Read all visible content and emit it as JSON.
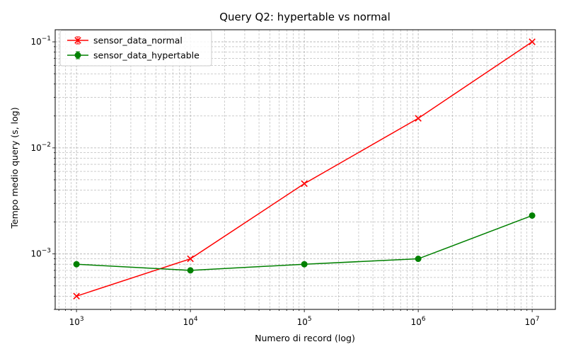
{
  "chart_data": {
    "type": "line",
    "title": "Query Q2: hypertable vs normal",
    "xlabel": "Numero di record (log)",
    "ylabel": "Tempo medio query (s, log)",
    "x_scale": "log",
    "y_scale": "log",
    "x": [
      1000,
      10000,
      100000,
      1000000,
      10000000
    ],
    "xlim": [
      650,
      16000000
    ],
    "ylim": [
      0.0003,
      0.13
    ],
    "x_ticks": [
      {
        "value": 1000,
        "base": "10",
        "exp": "3"
      },
      {
        "value": 10000,
        "base": "10",
        "exp": "4"
      },
      {
        "value": 100000,
        "base": "10",
        "exp": "5"
      },
      {
        "value": 1000000,
        "base": "10",
        "exp": "6"
      },
      {
        "value": 10000000,
        "base": "10",
        "exp": "7"
      }
    ],
    "y_ticks": [
      {
        "value": 0.001,
        "base": "10",
        "exp": "−3"
      },
      {
        "value": 0.01,
        "base": "10",
        "exp": "−2"
      },
      {
        "value": 0.1,
        "base": "10",
        "exp": "−1"
      }
    ],
    "grid": "both (major and minor, dashed)",
    "legend_position": "top-left",
    "series": [
      {
        "name": "sensor_data_normal",
        "color": "#ff0000",
        "marker": "x",
        "values": [
          0.0004,
          0.0009,
          0.0046,
          0.019,
          0.1
        ]
      },
      {
        "name": "sensor_data_hypertable",
        "color": "#008000",
        "marker": "o",
        "values": [
          0.0008,
          0.0007,
          0.0008,
          0.0009,
          0.0023
        ]
      }
    ]
  }
}
